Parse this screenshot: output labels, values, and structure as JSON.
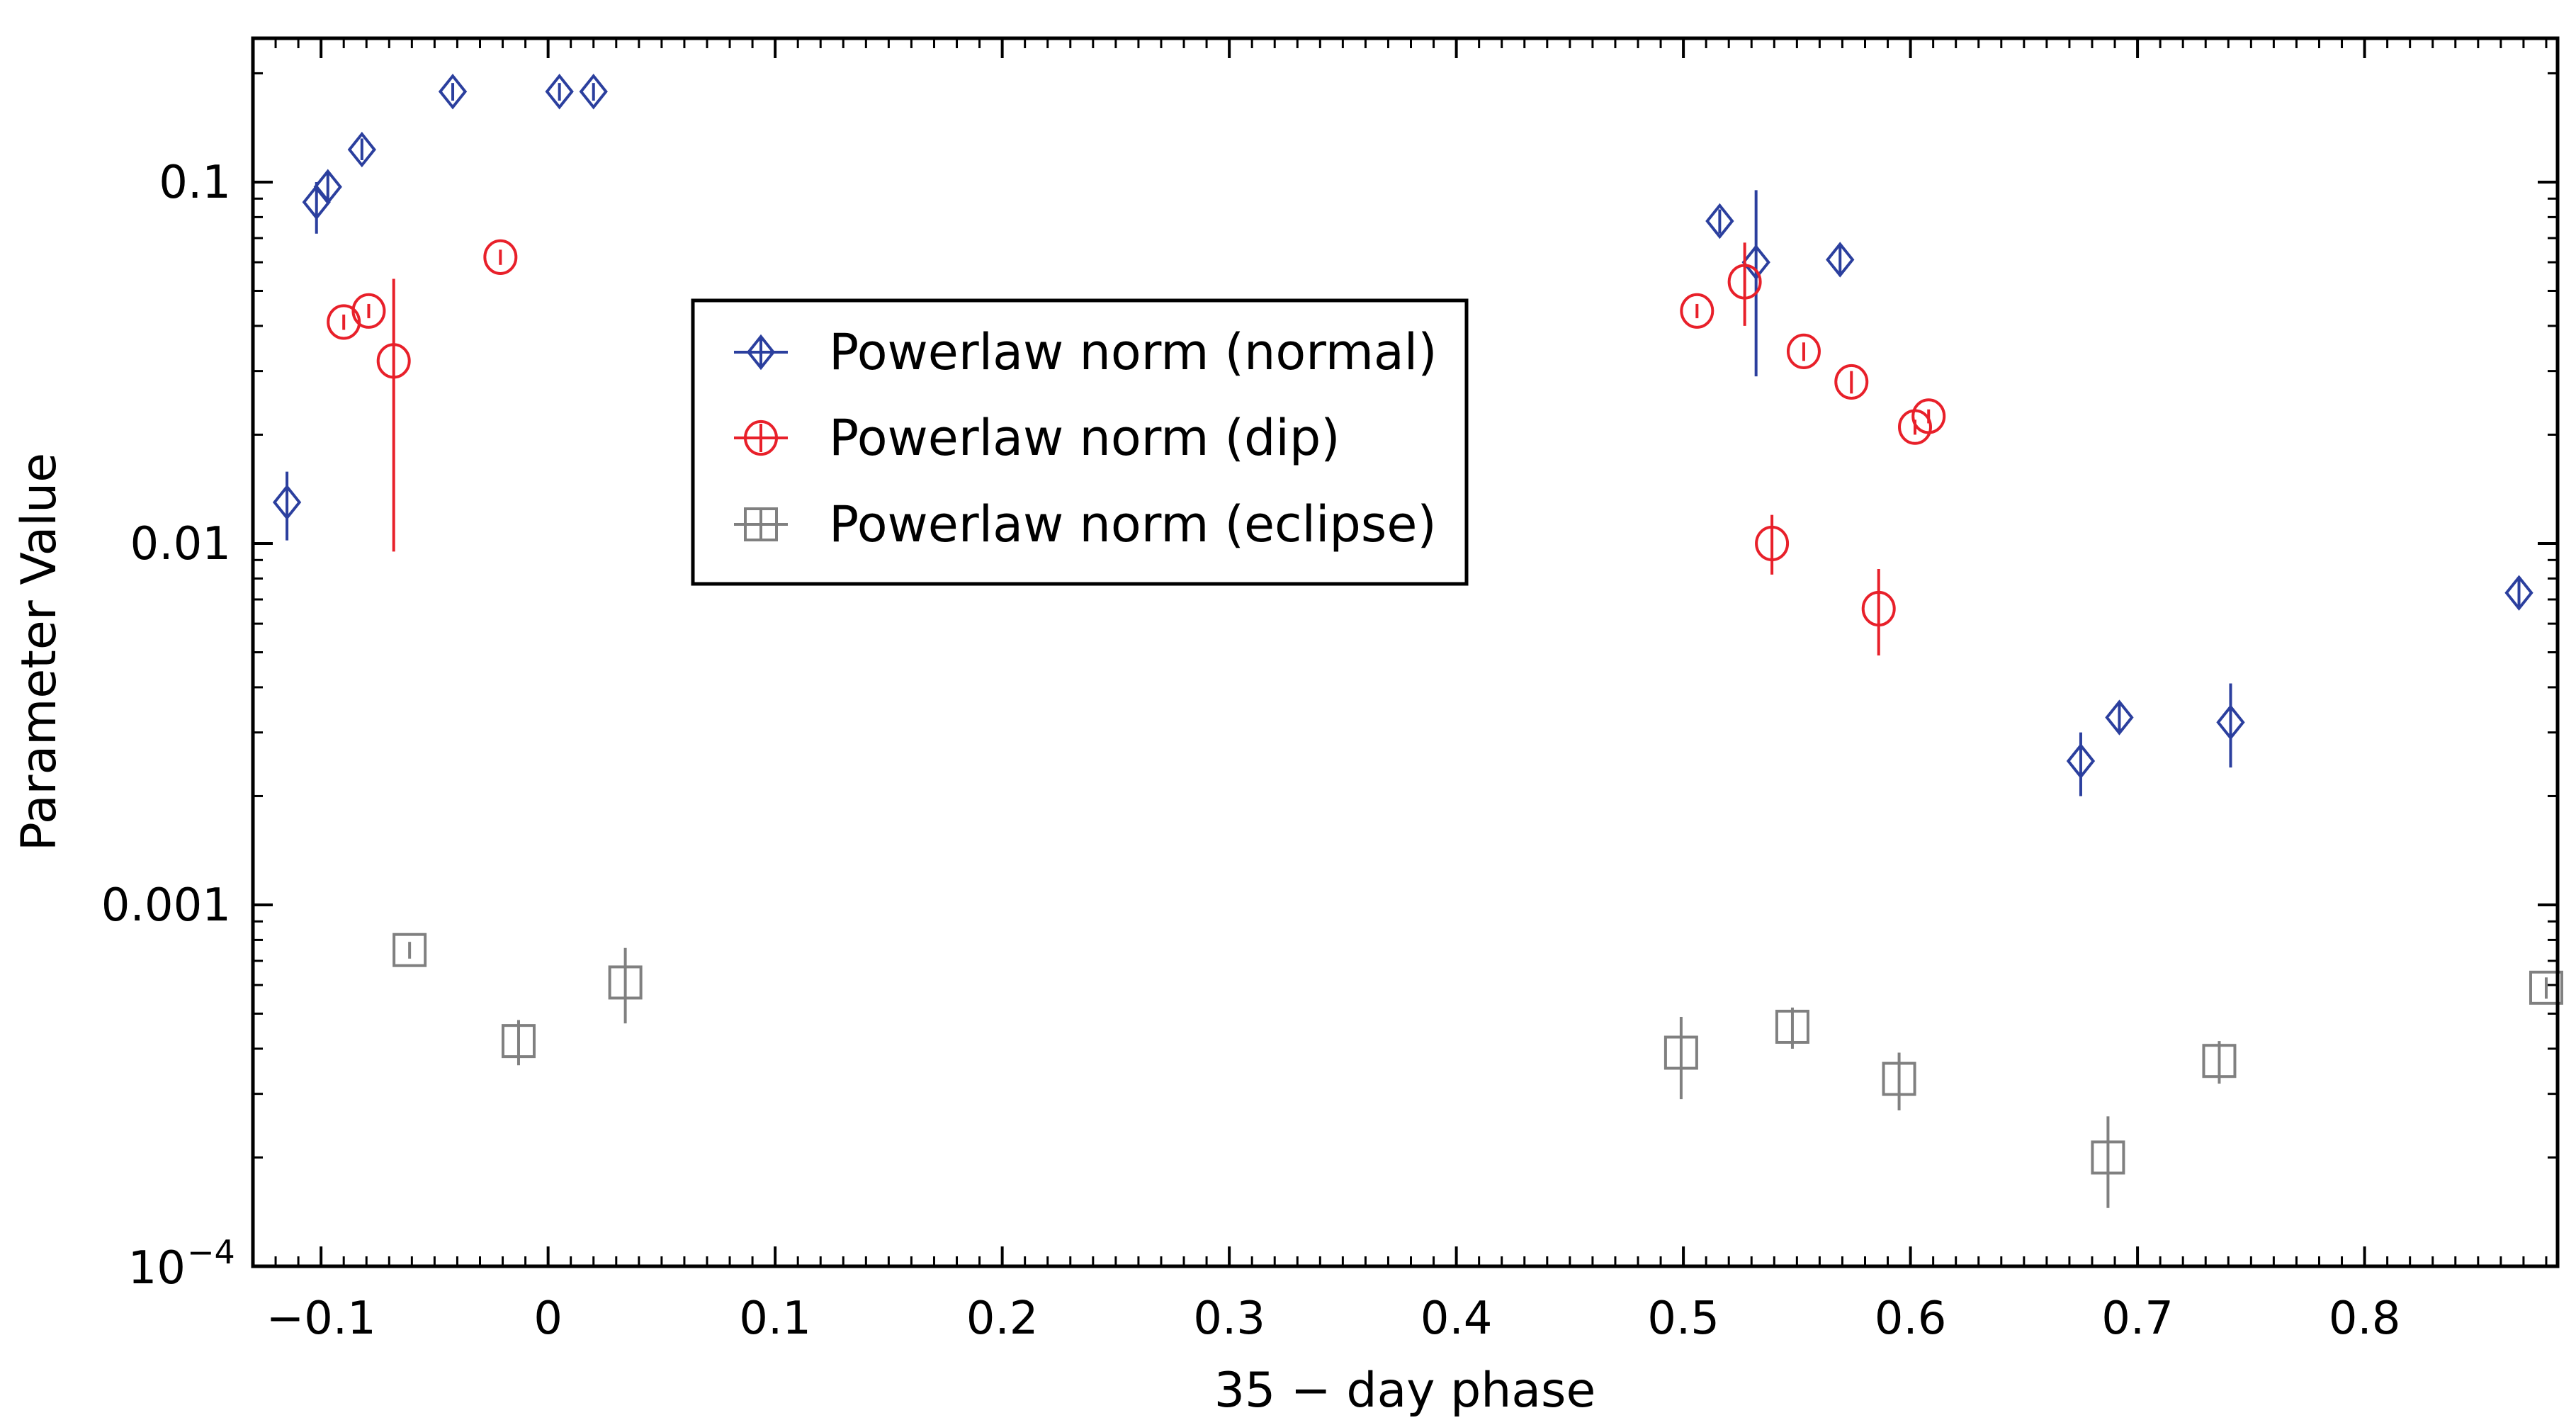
{
  "chart_data": {
    "type": "scatter",
    "title": "",
    "xlabel": "35 − day phase",
    "ylabel": "Parameter Value",
    "xlim": [
      -0.13,
      0.885
    ],
    "ylim": [
      0.0001,
      0.25
    ],
    "yscale": "log",
    "x_ticks": [
      -0.1,
      0,
      0.1,
      0.2,
      0.3,
      0.4,
      0.5,
      0.6,
      0.7,
      0.8
    ],
    "x_tick_labels": [
      "−0.1",
      "0",
      "0.1",
      "0.2",
      "0.3",
      "0.4",
      "0.5",
      "0.6",
      "0.7",
      "0.8"
    ],
    "y_ticks": [
      0.1,
      0.01,
      0.001
    ],
    "y_tick_labels": [
      "0.1",
      "0.01",
      "0.001"
    ],
    "y_min_label_base": "10",
    "y_min_label_exp": "−4",
    "legend_position": "upper-center-left",
    "series": [
      {
        "name": "Powerlaw norm (normal)",
        "marker": "diamond",
        "color": "#2b3f9e",
        "points": [
          {
            "x": -0.115,
            "y": 0.013,
            "lo": 0.0102,
            "hi": 0.0158
          },
          {
            "x": -0.102,
            "y": 0.088,
            "lo": 0.072,
            "hi": 0.1
          },
          {
            "x": -0.097,
            "y": 0.097,
            "lo": 0.088,
            "hi": 0.106
          },
          {
            "x": -0.082,
            "y": 0.123,
            "lo": 0.115,
            "hi": 0.132
          },
          {
            "x": -0.042,
            "y": 0.178,
            "lo": 0.168,
            "hi": 0.188
          },
          {
            "x": 0.005,
            "y": 0.178,
            "lo": 0.168,
            "hi": 0.188
          },
          {
            "x": 0.02,
            "y": 0.178,
            "lo": 0.168,
            "hi": 0.188
          },
          {
            "x": 0.516,
            "y": 0.078,
            "lo": 0.072,
            "hi": 0.084
          },
          {
            "x": 0.532,
            "y": 0.06,
            "lo": 0.029,
            "hi": 0.095
          },
          {
            "x": 0.569,
            "y": 0.061,
            "lo": 0.055,
            "hi": 0.067
          },
          {
            "x": 0.675,
            "y": 0.0025,
            "lo": 0.002,
            "hi": 0.003
          },
          {
            "x": 0.692,
            "y": 0.0033,
            "lo": 0.003,
            "hi": 0.0036
          },
          {
            "x": 0.741,
            "y": 0.0032,
            "lo": 0.0024,
            "hi": 0.0041
          },
          {
            "x": 0.868,
            "y": 0.0073,
            "lo": 0.0066,
            "hi": 0.008
          }
        ]
      },
      {
        "name": "Powerlaw norm (dip)",
        "marker": "circle",
        "color": "#e8202a",
        "points": [
          {
            "x": -0.09,
            "y": 0.041,
            "lo": 0.039,
            "hi": 0.043
          },
          {
            "x": -0.079,
            "y": 0.044,
            "lo": 0.042,
            "hi": 0.046
          },
          {
            "x": -0.068,
            "y": 0.032,
            "lo": 0.0095,
            "hi": 0.054
          },
          {
            "x": -0.021,
            "y": 0.062,
            "lo": 0.059,
            "hi": 0.065
          },
          {
            "x": 0.506,
            "y": 0.044,
            "lo": 0.042,
            "hi": 0.046
          },
          {
            "x": 0.527,
            "y": 0.053,
            "lo": 0.04,
            "hi": 0.068
          },
          {
            "x": 0.539,
            "y": 0.01,
            "lo": 0.0082,
            "hi": 0.012
          },
          {
            "x": 0.553,
            "y": 0.034,
            "lo": 0.032,
            "hi": 0.036
          },
          {
            "x": 0.574,
            "y": 0.028,
            "lo": 0.026,
            "hi": 0.03
          },
          {
            "x": 0.586,
            "y": 0.0066,
            "lo": 0.0049,
            "hi": 0.0085
          },
          {
            "x": 0.602,
            "y": 0.021,
            "lo": 0.02,
            "hi": 0.022
          },
          {
            "x": 0.608,
            "y": 0.0225,
            "lo": 0.0215,
            "hi": 0.0235
          }
        ]
      },
      {
        "name": "Powerlaw norm (eclipse)",
        "marker": "square",
        "color": "#808080",
        "points": [
          {
            "x": -0.061,
            "y": 0.00075,
            "lo": 0.00071,
            "hi": 0.00079
          },
          {
            "x": -0.013,
            "y": 0.00042,
            "lo": 0.00036,
            "hi": 0.00048
          },
          {
            "x": 0.034,
            "y": 0.00061,
            "lo": 0.00047,
            "hi": 0.00076
          },
          {
            "x": 0.499,
            "y": 0.00039,
            "lo": 0.00029,
            "hi": 0.00049
          },
          {
            "x": 0.548,
            "y": 0.00046,
            "lo": 0.0004,
            "hi": 0.00052
          },
          {
            "x": 0.595,
            "y": 0.00033,
            "lo": 0.00027,
            "hi": 0.00039
          },
          {
            "x": 0.687,
            "y": 0.0002,
            "lo": 0.000145,
            "hi": 0.00026
          },
          {
            "x": 0.736,
            "y": 0.00037,
            "lo": 0.00032,
            "hi": 0.00042
          },
          {
            "x": 0.88,
            "y": 0.00059,
            "lo": 0.00055,
            "hi": 0.00063
          }
        ]
      }
    ]
  }
}
